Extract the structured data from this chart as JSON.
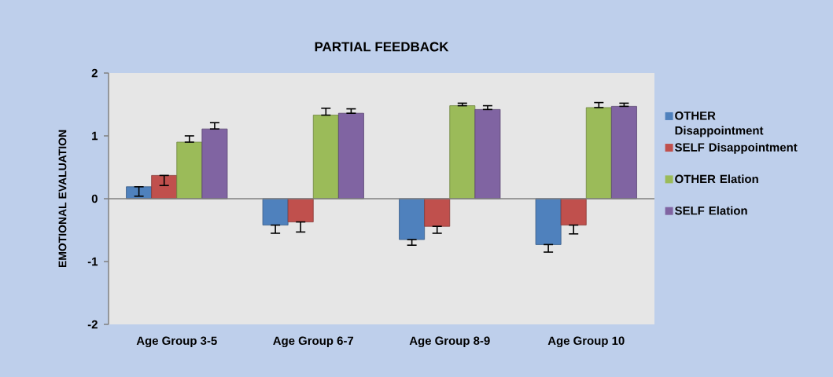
{
  "chart_data": {
    "type": "bar",
    "title": "PARTIAL FEEDBACK",
    "ylabel": "EMOTIONAL EVALUATION",
    "categories": [
      "Age Group 3-5",
      "Age Group 6-7",
      "Age Group 8-9",
      "Age Group 10"
    ],
    "series": [
      {
        "name": "OTHER Disappointment",
        "color": "#4f81bd",
        "values": [
          0.19,
          -0.42,
          -0.65,
          -0.73
        ],
        "errors": [
          [
            0.04,
            0.19
          ],
          [
            -0.55,
            -0.42
          ],
          [
            -0.74,
            -0.65
          ],
          [
            -0.85,
            -0.73
          ]
        ]
      },
      {
        "name": "SELF Disappointment",
        "color": "#c0504d",
        "values": [
          0.37,
          -0.37,
          -0.44,
          -0.42
        ],
        "errors": [
          [
            0.21,
            0.37
          ],
          [
            -0.53,
            -0.37
          ],
          [
            -0.55,
            -0.44
          ],
          [
            -0.56,
            -0.42
          ]
        ]
      },
      {
        "name": "OTHER Elation",
        "color": "#9bbb59",
        "values": [
          0.9,
          1.33,
          1.48,
          1.45
        ],
        "errors": [
          [
            0.9,
            1.0
          ],
          [
            1.33,
            1.44
          ],
          [
            1.48,
            1.52
          ],
          [
            1.45,
            1.53
          ]
        ]
      },
      {
        "name": "SELF Elation",
        "color": "#8064a2",
        "values": [
          1.11,
          1.36,
          1.42,
          1.47
        ],
        "errors": [
          [
            1.11,
            1.21
          ],
          [
            1.36,
            1.43
          ],
          [
            1.42,
            1.48
          ],
          [
            1.47,
            1.52
          ]
        ]
      }
    ],
    "ylim": [
      -2,
      2
    ],
    "yticks": [
      -2,
      -1,
      0,
      1,
      2
    ],
    "ref_lines": [
      {
        "axis": "y",
        "value": 0,
        "color": "#808080"
      }
    ],
    "legend": "right"
  }
}
